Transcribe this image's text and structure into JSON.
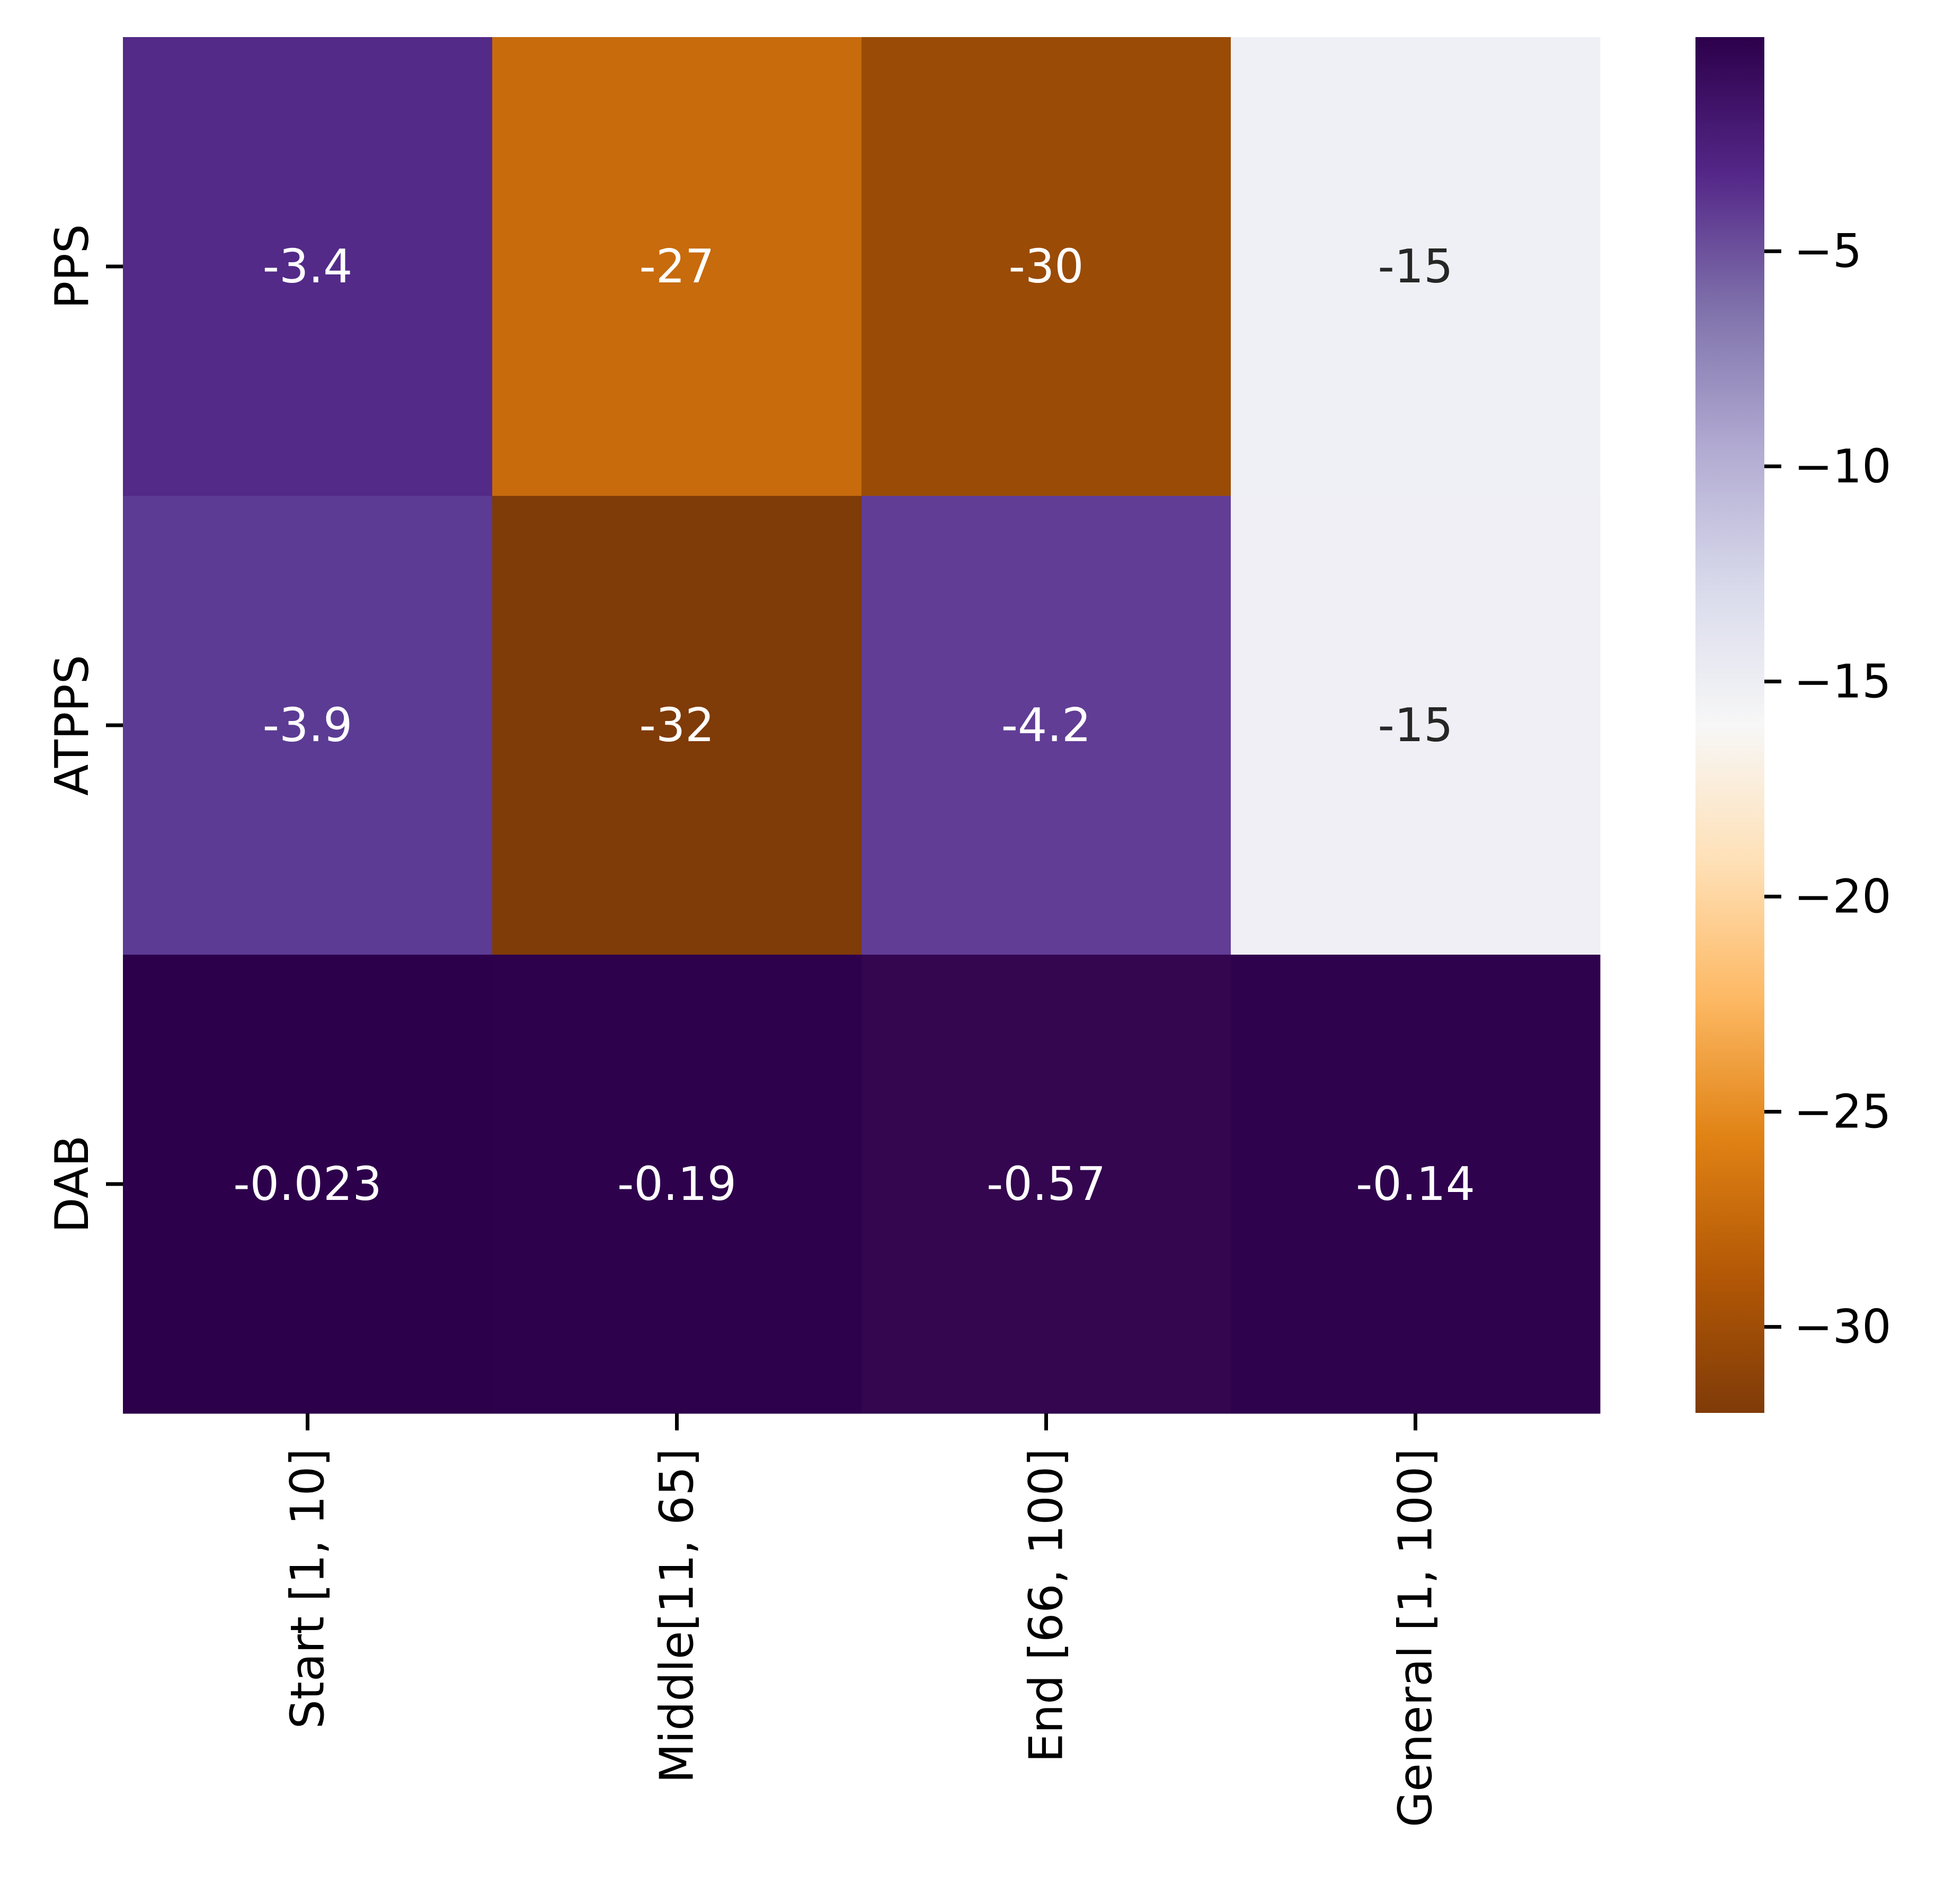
{
  "chart_data": {
    "type": "heatmap",
    "title": "",
    "xlabel": "",
    "ylabel": "",
    "columns": [
      "Start [1, 10]",
      "Middle[11, 65]",
      "End [66, 100]",
      "General [1, 100]"
    ],
    "rows": [
      "PPS",
      "ATPPS",
      "DAB"
    ],
    "values": [
      [
        -3.4,
        -27,
        -30,
        -15
      ],
      [
        -3.9,
        -32,
        -4.2,
        -15
      ],
      [
        -0.023,
        -0.19,
        -0.57,
        -0.14
      ]
    ],
    "labels": [
      [
        "-3.4",
        "-27",
        "-30",
        "-15"
      ],
      [
        "-3.9",
        "-32",
        "-4.2",
        "-15"
      ],
      [
        "-0.023",
        "-0.19",
        "-0.57",
        "-0.14"
      ]
    ],
    "colormap": "PuOr",
    "colorbar": {
      "min": -32,
      "max": -0.023,
      "ticks": [
        -5,
        -10,
        -15,
        -20,
        -25,
        -30
      ],
      "tick_labels": [
        "−5",
        "−10",
        "−15",
        "−20",
        "−25",
        "−30"
      ]
    },
    "cell_colors": [
      [
        "#532a88",
        "#c76b0d",
        "#9a4b06",
        "#eff0f5"
      ],
      [
        "#5c3b94",
        "#7f3b08",
        "#613d95",
        "#efeff5"
      ],
      [
        "#2d004b",
        "#2e014c",
        "#33064f",
        "#2f024d"
      ]
    ],
    "label_colors": [
      [
        "#ffffff",
        "#ffffff",
        "#ffffff",
        "#262626"
      ],
      [
        "#ffffff",
        "#ffffff",
        "#ffffff",
        "#262626"
      ],
      [
        "#ffffff",
        "#ffffff",
        "#ffffff",
        "#ffffff"
      ]
    ],
    "colorbar_gradient": [
      "#2d004b",
      "#542788",
      "#8073ac",
      "#b2abd2",
      "#d8daeb",
      "#f7f7f7",
      "#fee0b6",
      "#fdb863",
      "#e08214",
      "#b35806",
      "#7f3b08"
    ]
  }
}
